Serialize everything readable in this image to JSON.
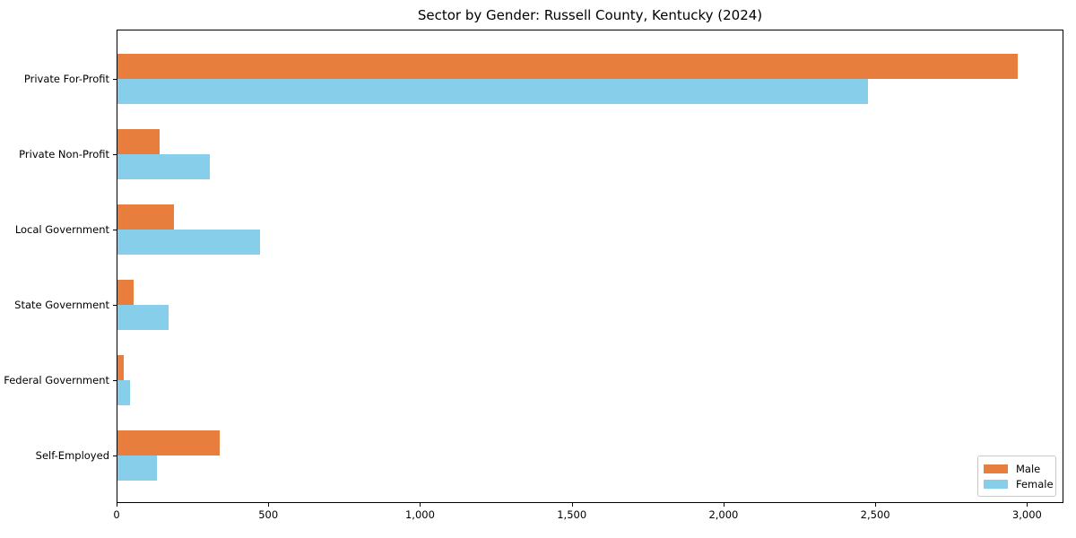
{
  "chart_data": {
    "type": "bar",
    "orientation": "horizontal",
    "title": "Sector by Gender: Russell County, Kentucky (2024)",
    "categories": [
      "Private For-Profit",
      "Private Non-Profit",
      "Local Government",
      "State Government",
      "Federal Government",
      "Self-Employed"
    ],
    "series": [
      {
        "name": "Male",
        "color": "#E87E3E",
        "values": [
          2972,
          140,
          187,
          52,
          21,
          338
        ]
      },
      {
        "name": "Female",
        "color": "#87CEEB",
        "values": [
          2478,
          305,
          471,
          170,
          42,
          129
        ]
      }
    ],
    "xlabel": "",
    "ylabel": "",
    "xlim": [
      0,
      3120
    ],
    "xticks": [
      0,
      500,
      1000,
      1500,
      2000,
      2500,
      3000
    ],
    "xtick_labels": [
      "0",
      "500",
      "1,000",
      "1,500",
      "2,000",
      "2,500",
      "3,000"
    ],
    "grid": false,
    "legend_position": "lower right"
  }
}
